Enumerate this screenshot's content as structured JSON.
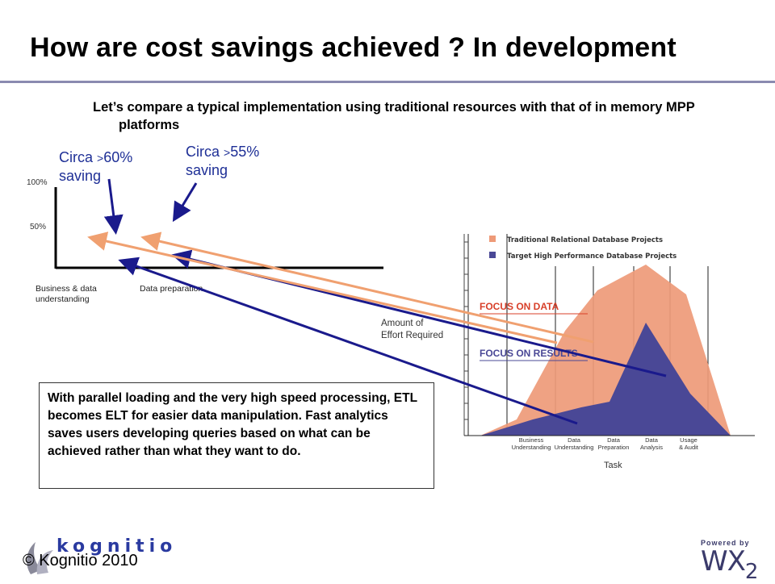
{
  "slide": {
    "title": "How are cost savings achieved ? In development",
    "subtitle": "Let’s compare a typical implementation using traditional resources with that of in memory MPP platforms"
  },
  "savings": [
    {
      "label": "Circa",
      "gt": ">",
      "value": "60%",
      "tail": "saving"
    },
    {
      "label": "Circa",
      "gt": ">",
      "value": "55%",
      "tail": "saving"
    }
  ],
  "left_chart": {
    "yticks": [
      "100%",
      "50%"
    ],
    "xticks": [
      "Business & data understanding",
      "Data preparation"
    ]
  },
  "effort_chart": {
    "type": "area",
    "legend": [
      "Traditional Relational Database Projects",
      "Target High Performance Database Projects"
    ],
    "annotations": [
      "FOCUS ON DATA",
      "FOCUS ON RESULTS",
      "Amount of Effort Required"
    ],
    "categories": [
      "Business Understanding",
      "Data Understanding",
      "Data Preparation",
      "Data Analysis",
      "Usage & Audit"
    ],
    "xlabel": "Task",
    "colors": {
      "traditional": "#ee9a78",
      "target": "#4a4896",
      "focus_data": "#d8402a",
      "focus_results": "#4a4896"
    }
  },
  "callout": "With parallel loading and the very high speed processing, ETL becomes ELT for easier data manipulation. Fast analytics saves users developing queries based on what can be achieved rather than what they want to do.",
  "footer": {
    "copyright": "© Kognitio 2010",
    "logo": "kognitio",
    "powered_by": "Powered by",
    "wx": "WX",
    "wx_sub": "2"
  },
  "colors": {
    "arrow_blue": "#1a1a8c",
    "arrow_orange": "#f0a070",
    "rule": "#8a8ab0",
    "saving_text": "#1e2f96"
  }
}
